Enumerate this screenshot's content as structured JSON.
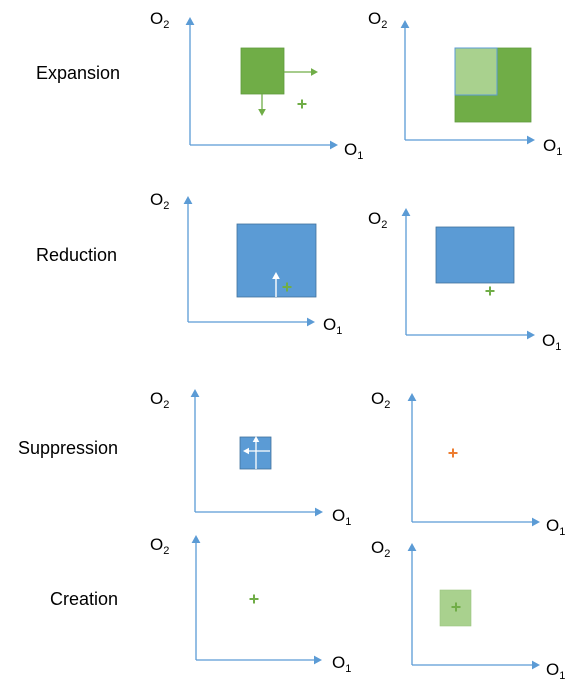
{
  "rows": [
    {
      "label": "Expansion"
    },
    {
      "label": "Reduction"
    },
    {
      "label": "Suppression"
    },
    {
      "label": "Creation"
    }
  ],
  "axes": {
    "x_label": "O",
    "x_sub": "1",
    "y_label": "O",
    "y_sub": "2"
  },
  "colors": {
    "axis": "#5b9bd5",
    "green_dark": "#70ad47",
    "green_light": "#a9d18e",
    "blue": "#5b9bd5",
    "blue_edge": "#41719c",
    "orange": "#ed7d31",
    "white": "#ffffff"
  }
}
